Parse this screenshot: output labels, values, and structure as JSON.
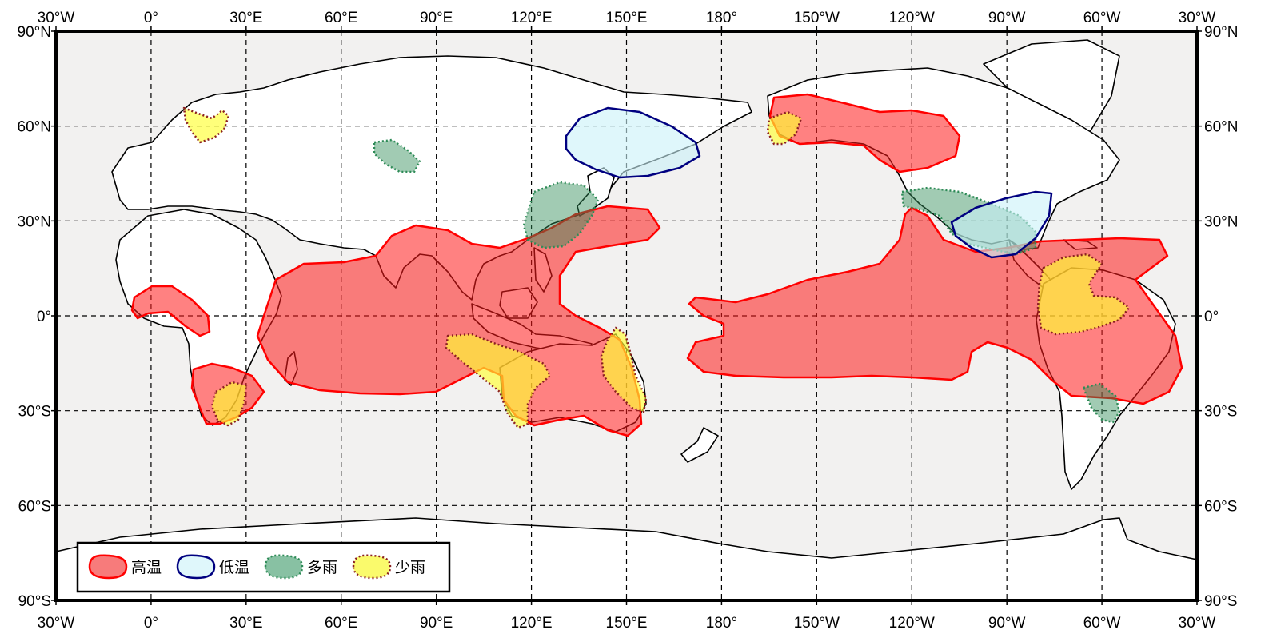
{
  "map": {
    "lon_labels": [
      "30°W",
      "0°",
      "30°E",
      "60°E",
      "90°E",
      "120°E",
      "150°E",
      "180°",
      "150°W",
      "120°W",
      "90°W",
      "60°W",
      "30°W"
    ],
    "lat_labels": [
      "90°N",
      "60°N",
      "30°N",
      "0°",
      "30°S",
      "60°S",
      "90°S"
    ],
    "lon_range": [
      -30,
      330
    ],
    "lat_range": [
      -90,
      90
    ],
    "grid": true,
    "grid_step_deg": 30,
    "background_color": "#f2f1f0"
  },
  "legend": {
    "placement": "bottom-left",
    "items": [
      {
        "label": "高温",
        "fill": "#f77b7b",
        "stroke": "#ff0000",
        "style": "solid"
      },
      {
        "label": "低温",
        "fill": "#dff7fb",
        "stroke": "#000080",
        "style": "solid"
      },
      {
        "label": "多雨",
        "fill": "#88c1a3",
        "stroke": "#2e8b57",
        "style": "dotted"
      },
      {
        "label": "少雨",
        "fill": "#fafa6c",
        "stroke": "#8b2020",
        "style": "dotted"
      }
    ]
  }
}
